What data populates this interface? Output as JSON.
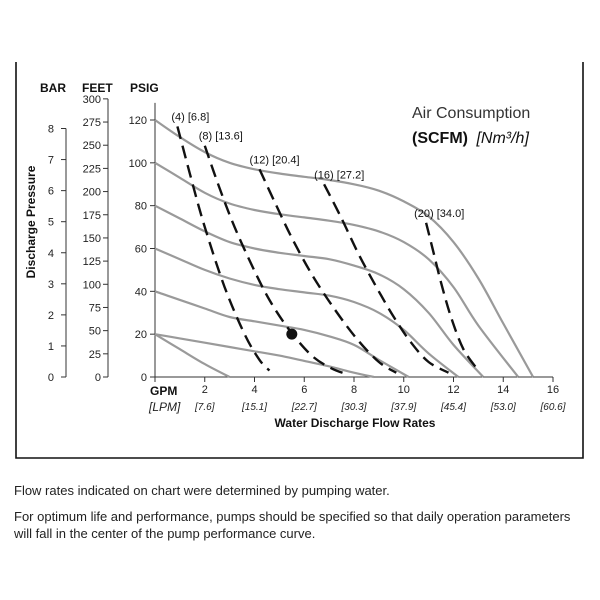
{
  "chart_data": {
    "type": "line",
    "title": "Air Consumption",
    "subtitle_bold": "(SCFM)",
    "subtitle_italic": "[Nm³/h]",
    "xlabel": "Water Discharge Flow Rates",
    "ylabel": "Discharge Pressure",
    "x_unit": "GPM",
    "x_unit_alt": "[LPM]",
    "xlim": [
      0,
      16
    ],
    "x_ticks": [
      0,
      2,
      4,
      6,
      8,
      10,
      12,
      14,
      16
    ],
    "x_tick_labels": [
      "0",
      "2",
      "4",
      "6",
      "8",
      "10",
      "12",
      "14",
      "16"
    ],
    "x_alt_tick_labels": [
      "[7.6]",
      "[15.1]",
      "[22.7]",
      "[30.3]",
      "[37.9]",
      "[45.4]",
      "[53.0]",
      "[60.6]"
    ],
    "y_axes": [
      {
        "head": "BAR",
        "ticks": [
          0,
          1,
          2,
          3,
          4,
          5,
          6,
          7,
          8
        ],
        "labels": [
          "0",
          "1",
          "2",
          "3",
          "4",
          "5",
          "6",
          "7",
          "8"
        ]
      },
      {
        "head": "FEET",
        "ticks": [
          0,
          25,
          50,
          75,
          100,
          125,
          150,
          175,
          200,
          225,
          250,
          275,
          300
        ],
        "labels": [
          "0",
          "25",
          "50",
          "75",
          "100",
          "125",
          "150",
          "175",
          "200",
          "225",
          "250",
          "275",
          "300"
        ]
      },
      {
        "head": "PSIG",
        "ticks": [
          0,
          20,
          40,
          60,
          80,
          100,
          120
        ],
        "labels": [
          "0",
          "20",
          "40",
          "60",
          "80",
          "100",
          "120"
        ]
      }
    ],
    "ylim": [
      0,
      130
    ],
    "pump_curves": [
      {
        "x": [
          0,
          1,
          2,
          3,
          4,
          5,
          6,
          7,
          8,
          9,
          10,
          11,
          12,
          13,
          14,
          15.2
        ],
        "y": [
          120,
          112,
          105,
          100,
          97,
          95,
          93.5,
          92,
          90,
          87,
          82,
          75,
          63,
          46,
          25,
          0
        ]
      },
      {
        "x": [
          0,
          1,
          2,
          3,
          4,
          5,
          6,
          7,
          8,
          9,
          10,
          11,
          12,
          13,
          14.6
        ],
        "y": [
          100,
          93,
          86,
          81,
          78,
          76,
          74.5,
          73,
          71,
          68,
          63,
          55,
          42,
          24,
          0
        ]
      },
      {
        "x": [
          0,
          1,
          2,
          3,
          4,
          5,
          6,
          7,
          8,
          9,
          10,
          11,
          12,
          13.2
        ],
        "y": [
          80,
          74,
          68,
          63,
          60,
          58,
          56.5,
          55,
          52,
          48,
          41,
          30,
          15,
          0
        ]
      },
      {
        "x": [
          0,
          1,
          2,
          3,
          4,
          5,
          6,
          7,
          8,
          9,
          10,
          11,
          12.2
        ],
        "y": [
          60,
          55,
          50,
          46,
          43,
          41,
          39.5,
          38,
          35,
          30,
          22,
          11,
          0
        ]
      },
      {
        "x": [
          0,
          1,
          2,
          3,
          4,
          5,
          6,
          7,
          8,
          9,
          10.2
        ],
        "y": [
          40,
          36,
          32,
          28,
          26,
          24,
          22,
          19,
          15,
          8,
          0
        ]
      },
      {
        "x": [
          0,
          1,
          2,
          3,
          4,
          5,
          6,
          7,
          8,
          8.8
        ],
        "y": [
          20,
          18,
          16,
          14,
          12,
          10,
          7.5,
          5,
          2,
          0
        ]
      },
      {
        "x": [
          0,
          1,
          2,
          3
        ],
        "y": [
          20,
          13,
          6,
          0
        ]
      }
    ],
    "air_curves": [
      {
        "label": "(4) [6.8]",
        "x": [
          0.9,
          1.4,
          2.0,
          2.8,
          3.6,
          4.2,
          4.6
        ],
        "y": [
          117,
          95,
          70,
          42,
          20,
          8,
          3
        ]
      },
      {
        "label": "(8) [13.6]",
        "x": [
          2.0,
          2.6,
          3.2,
          3.9,
          4.6,
          5.4,
          6.3,
          7.1,
          7.8
        ],
        "y": [
          108,
          88,
          70,
          52,
          36,
          22,
          10,
          4,
          1
        ]
      },
      {
        "label": "(12) [20.4]",
        "x": [
          4.2,
          4.8,
          5.5,
          6.3,
          7.2,
          8.1,
          9.0,
          9.7
        ],
        "y": [
          97,
          82,
          65,
          48,
          32,
          18,
          7,
          2
        ]
      },
      {
        "label": "(16) [27.2]",
        "x": [
          6.8,
          7.5,
          8.2,
          8.9,
          9.6,
          10.3,
          11.0,
          11.8
        ],
        "y": [
          90,
          74,
          57,
          42,
          28,
          16,
          7,
          2
        ]
      },
      {
        "label": "(20) [34.0]",
        "x": [
          10.9,
          11.2,
          11.5,
          11.9,
          12.4,
          13.0
        ],
        "y": [
          72,
          58,
          44,
          28,
          13,
          3
        ]
      }
    ],
    "operating_point": {
      "x": 5.5,
      "y": 20
    }
  },
  "notes": {
    "line1": "Flow rates indicated on chart were determined by pumping water.",
    "line2": "For optimum life and performance, pumps should be specified so that daily operation parameters will fall in the center of the pump performance curve."
  }
}
